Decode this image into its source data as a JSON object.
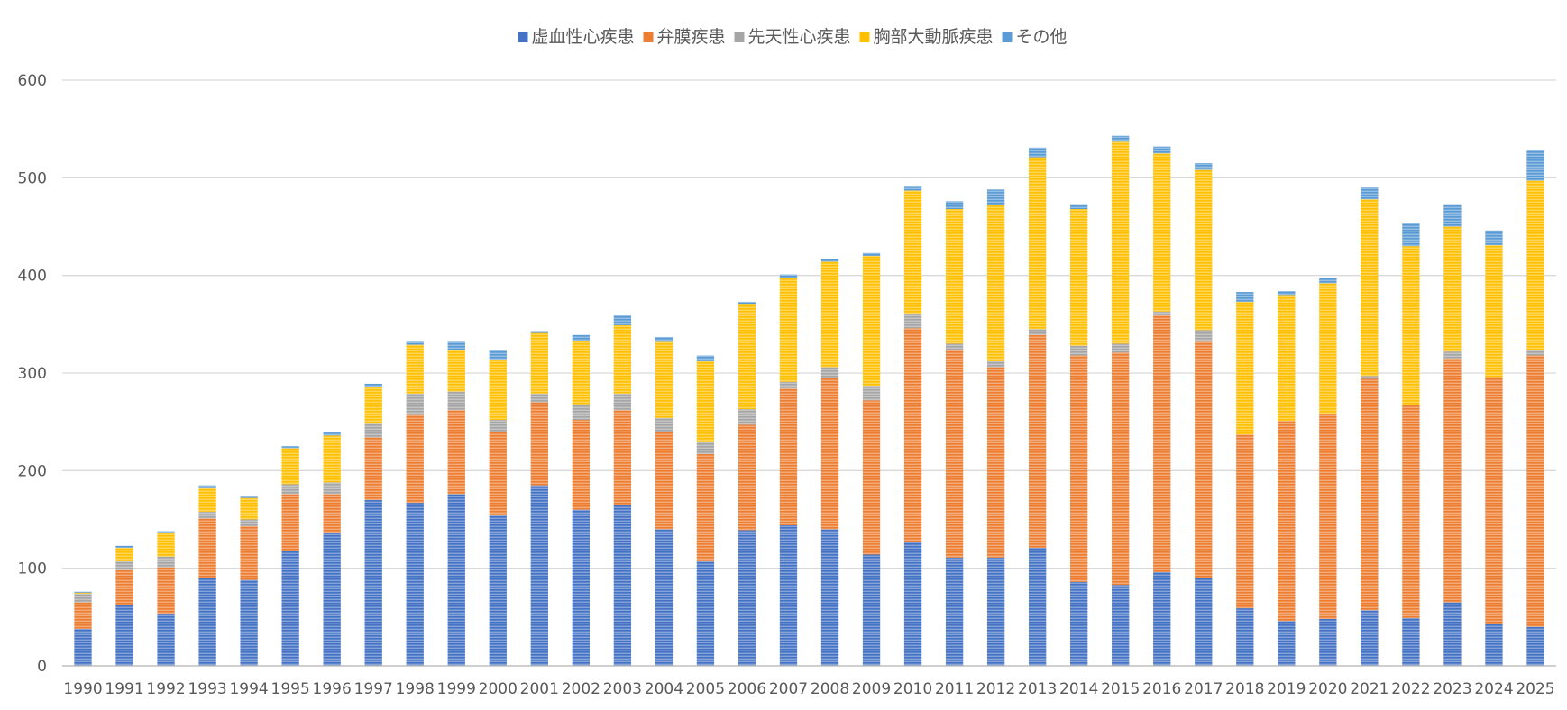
{
  "chart_data": {
    "type": "bar",
    "stacked": true,
    "title": "",
    "xlabel": "",
    "ylabel": "",
    "ylim": [
      0,
      600
    ],
    "yticks": [
      0,
      100,
      200,
      300,
      400,
      500,
      600
    ],
    "grid": true,
    "legend_position": "top",
    "categories": [
      "1990",
      "1991",
      "1992",
      "1993",
      "1994",
      "1995",
      "1996",
      "1997",
      "1998",
      "1999",
      "2000",
      "2001",
      "2002",
      "2003",
      "2004",
      "2005",
      "2006",
      "2007",
      "2008",
      "2009",
      "2010",
      "2011",
      "2012",
      "2013",
      "2014",
      "2015",
      "2016",
      "2017",
      "2018",
      "2019",
      "2020",
      "2021",
      "2022",
      "2023",
      "2024",
      "2025"
    ],
    "series": [
      {
        "name": "虚血性心疾患",
        "color": "#4472C4",
        "values": [
          38,
          62,
          53,
          90,
          88,
          118,
          136,
          170,
          167,
          176,
          154,
          185,
          160,
          165,
          140,
          107,
          139,
          144,
          140,
          114,
          127,
          111,
          111,
          121,
          86,
          83,
          96,
          90,
          59,
          46,
          48,
          57,
          49,
          65,
          43,
          40
        ]
      },
      {
        "name": "弁膜疾患",
        "color": "#ED7D31",
        "values": [
          27,
          36,
          48,
          61,
          55,
          58,
          40,
          64,
          90,
          86,
          86,
          85,
          92,
          97,
          100,
          110,
          108,
          140,
          155,
          158,
          219,
          212,
          195,
          218,
          232,
          238,
          263,
          242,
          178,
          205,
          210,
          237,
          218,
          250,
          253,
          278
        ]
      },
      {
        "name": "先天性心疾患",
        "color": "#A5A5A5",
        "values": [
          9,
          9,
          11,
          7,
          7,
          10,
          12,
          14,
          22,
          19,
          12,
          9,
          16,
          17,
          14,
          12,
          16,
          7,
          11,
          15,
          14,
          7,
          6,
          6,
          10,
          9,
          4,
          12,
          0,
          0,
          0,
          3,
          0,
          7,
          0,
          5
        ]
      },
      {
        "name": "胸部大動脈疾患",
        "color": "#FFC000",
        "values": [
          1,
          14,
          24,
          24,
          22,
          37,
          48,
          38,
          50,
          43,
          62,
          62,
          65,
          70,
          78,
          83,
          108,
          106,
          108,
          133,
          127,
          138,
          160,
          176,
          140,
          207,
          162,
          164,
          136,
          129,
          134,
          181,
          163,
          128,
          135,
          174
        ]
      },
      {
        "name": "その他",
        "color": "#5B9BD5",
        "values": [
          1,
          2,
          2,
          3,
          2,
          2,
          3,
          3,
          3,
          8,
          9,
          2,
          6,
          10,
          5,
          6,
          2,
          4,
          3,
          3,
          5,
          8,
          16,
          10,
          5,
          6,
          7,
          7,
          10,
          4,
          5,
          12,
          24,
          23,
          15,
          31
        ]
      }
    ]
  }
}
